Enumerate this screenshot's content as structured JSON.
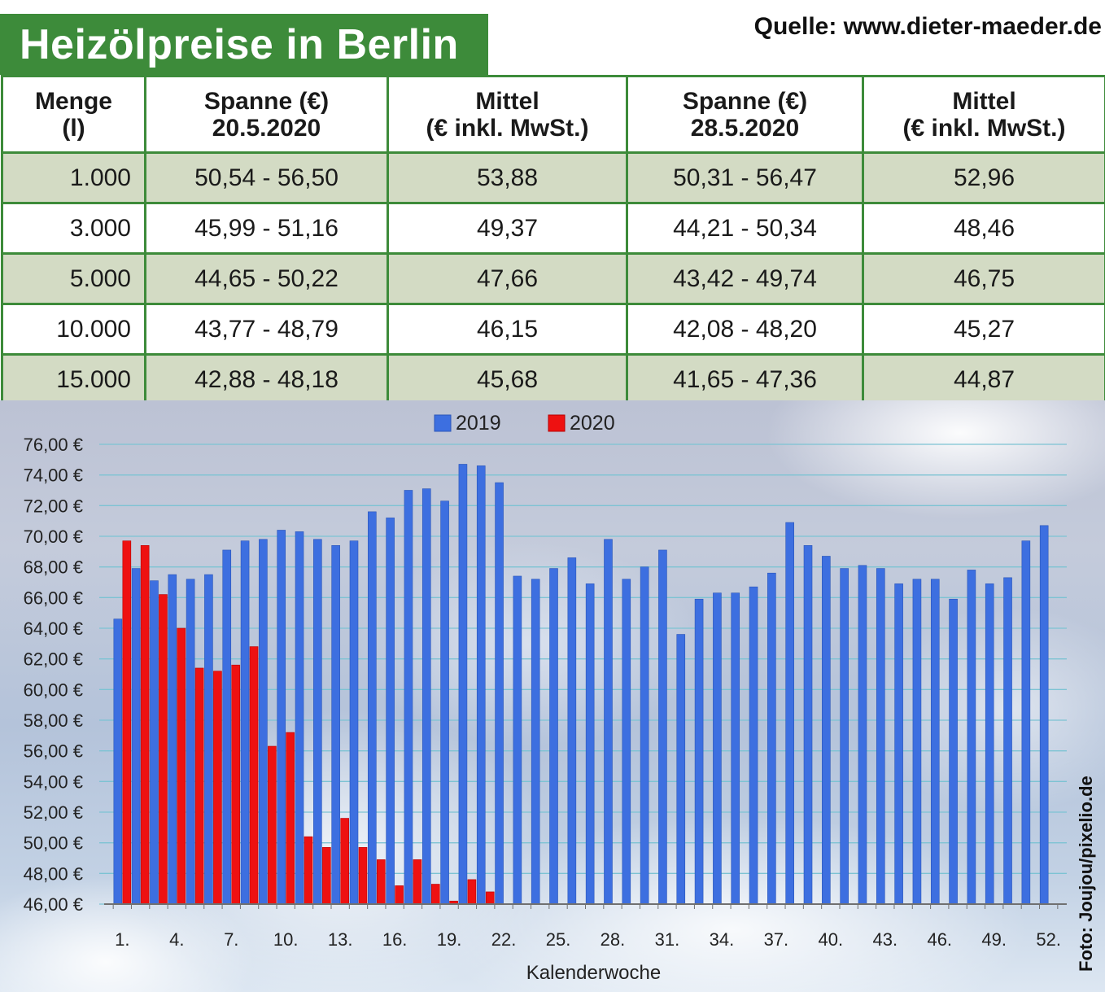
{
  "header": {
    "title": "Heizölpreise in Berlin",
    "source": "Quelle: www.dieter-maeder.de"
  },
  "table": {
    "columns": [
      {
        "line1": "Menge",
        "line2": "(l)"
      },
      {
        "line1": "Spanne (€)",
        "line2": "20.5.2020"
      },
      {
        "line1": "Mittel",
        "line2": "(€ inkl. MwSt.)"
      },
      {
        "line1": "Spanne (€)",
        "line2": "28.5.2020"
      },
      {
        "line1": "Mittel",
        "line2": "(€ inkl. MwSt.)"
      }
    ],
    "rows": [
      [
        "1.000",
        "50,54 - 56,50",
        "53,88",
        "50,31 - 56,47",
        "52,96"
      ],
      [
        "3.000",
        "45,99 - 51,16",
        "49,37",
        "44,21 - 50,34",
        "48,46"
      ],
      [
        "5.000",
        "44,65 - 50,22",
        "47,66",
        "43,42 - 49,74",
        "46,75"
      ],
      [
        "10.000",
        "43,77 - 48,79",
        "46,15",
        "42,08 - 48,20",
        "45,27"
      ],
      [
        "15.000",
        "42,88 - 48,18",
        "45,68",
        "41,65 - 47,36",
        "44,87"
      ]
    ]
  },
  "photo_credit": "Foto: Joujou/pixelio.de",
  "colors": {
    "title_bg": "#3d8b3a",
    "table_border": "#3d8b3a",
    "row_alt": "#d3dbc4",
    "series_2019": "#3d6fe0",
    "series_2020": "#ee1111"
  },
  "chart_data": {
    "type": "bar",
    "title": "",
    "xlabel": "Kalenderwoche",
    "ylabel": "",
    "ylim": [
      46,
      76
    ],
    "y_ticks": [
      46,
      48,
      50,
      52,
      54,
      56,
      58,
      60,
      62,
      64,
      66,
      68,
      70,
      72,
      74,
      76
    ],
    "y_tick_labels": [
      "46,00 €",
      "48,00 €",
      "50,00 €",
      "52,00 €",
      "54,00 €",
      "56,00 €",
      "58,00 €",
      "60,00 €",
      "62,00 €",
      "64,00 €",
      "66,00 €",
      "68,00 €",
      "70,00 €",
      "72,00 €",
      "74,00 €",
      "76,00 €"
    ],
    "x_ticks": [
      1,
      4,
      7,
      10,
      13,
      16,
      19,
      22,
      25,
      28,
      31,
      34,
      37,
      40,
      43,
      46,
      49,
      52
    ],
    "x_tick_labels": [
      "1.",
      "4.",
      "7.",
      "10.",
      "13.",
      "16.",
      "19.",
      "22.",
      "25.",
      "28.",
      "31.",
      "34.",
      "37.",
      "40.",
      "43.",
      "46.",
      "49.",
      "52."
    ],
    "grid": true,
    "legend_position": "top",
    "series": [
      {
        "name": "2019",
        "weeks": [
          1,
          2,
          3,
          4,
          5,
          6,
          7,
          8,
          9,
          10,
          11,
          12,
          13,
          14,
          15,
          16,
          17,
          18,
          19,
          20,
          21,
          22,
          23,
          24,
          25,
          26,
          27,
          28,
          29,
          30,
          31,
          32,
          33,
          34,
          35,
          36,
          37,
          38,
          39,
          40,
          41,
          42,
          43,
          44,
          45,
          46,
          47,
          48,
          49,
          50,
          51,
          52
        ],
        "values": [
          64.6,
          67.9,
          67.1,
          67.5,
          67.2,
          67.5,
          69.1,
          69.7,
          69.8,
          70.4,
          70.3,
          69.8,
          69.4,
          69.7,
          71.6,
          71.2,
          73.0,
          73.1,
          72.3,
          74.7,
          74.6,
          73.5,
          67.4,
          67.2,
          67.9,
          68.6,
          66.9,
          69.8,
          67.2,
          68.0,
          69.1,
          63.6,
          65.9,
          66.3,
          66.3,
          66.7,
          67.6,
          70.9,
          69.4,
          68.7,
          67.9,
          68.1,
          67.9,
          66.9,
          67.2,
          67.2,
          65.9,
          67.8,
          66.9,
          67.3,
          69.7,
          70.7
        ]
      },
      {
        "name": "2020",
        "weeks": [
          1,
          2,
          3,
          4,
          5,
          6,
          7,
          8,
          9,
          10,
          11,
          12,
          13,
          14,
          15,
          16,
          17,
          18,
          19,
          20,
          21
        ],
        "values": [
          69.7,
          69.4,
          66.2,
          64.0,
          61.4,
          61.2,
          61.6,
          62.8,
          56.3,
          57.2,
          50.4,
          49.7,
          51.6,
          49.7,
          48.9,
          47.2,
          48.9,
          47.3,
          46.2,
          47.6,
          46.8
        ]
      }
    ]
  }
}
